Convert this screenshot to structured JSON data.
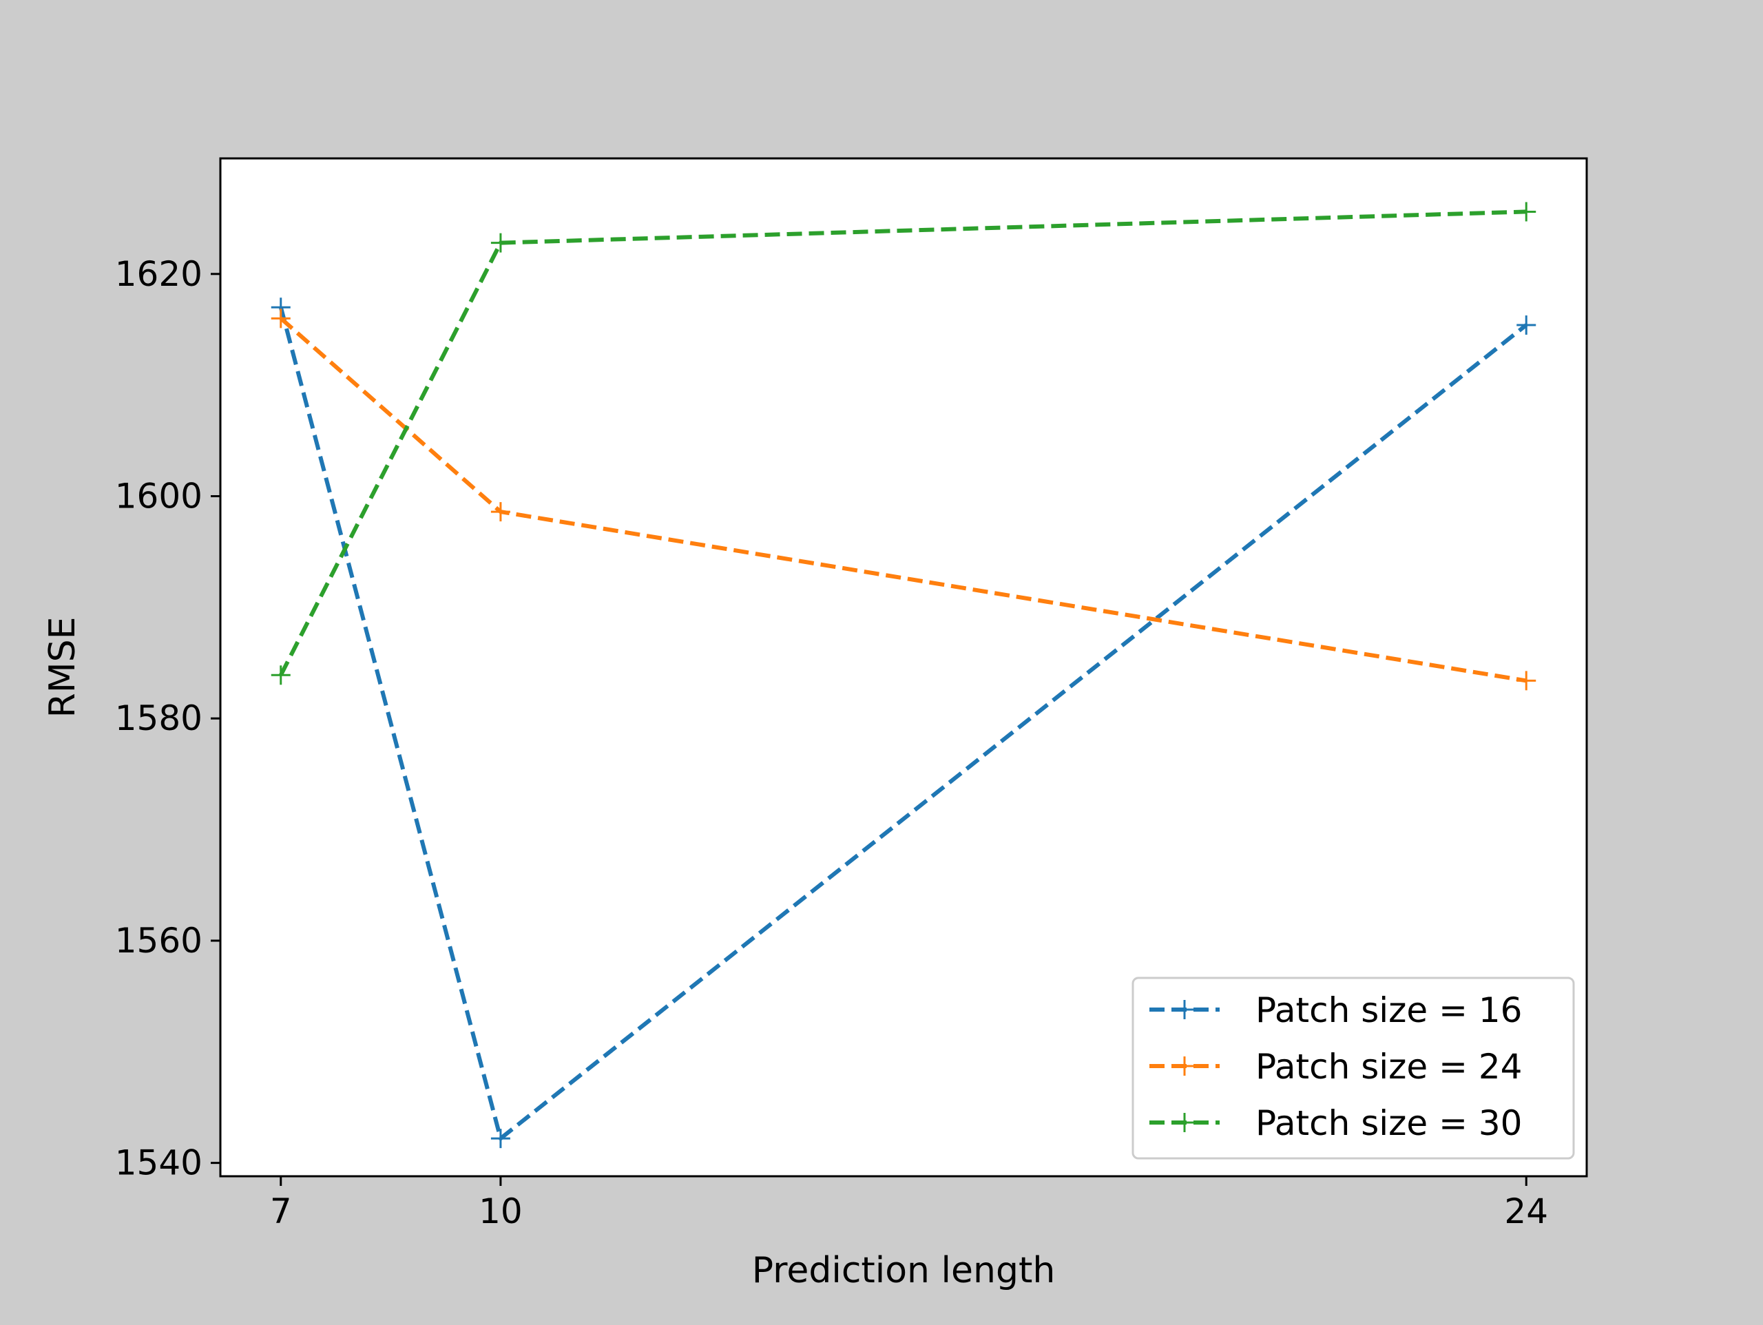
{
  "chart_data": {
    "type": "line",
    "title": "",
    "xlabel": "Prediction length",
    "ylabel": "RMSE",
    "x": [
      7,
      10,
      24
    ],
    "xticks": [
      7,
      10,
      24
    ],
    "yticks": [
      1540,
      1560,
      1580,
      1600,
      1620
    ],
    "xlim": [
      6.175,
      24.825
    ],
    "ylim": [
      1538.8,
      1630.4
    ],
    "grid": false,
    "legend_position": "lower-right",
    "series": [
      {
        "name": "Patch size = 16",
        "color": "#1f77b4",
        "values": [
          1617.0,
          1542.2,
          1615.4
        ]
      },
      {
        "name": "Patch size = 24",
        "color": "#ff7f0e",
        "values": [
          1616.0,
          1598.6,
          1583.4
        ]
      },
      {
        "name": "Patch size = 30",
        "color": "#2ca02c",
        "values": [
          1583.9,
          1622.8,
          1625.6
        ]
      }
    ],
    "line_style": "dashed",
    "marker": "plus",
    "colors": {
      "figure_background": "#cccccc",
      "plot_background": "#ffffff",
      "axes": "#000000"
    }
  }
}
